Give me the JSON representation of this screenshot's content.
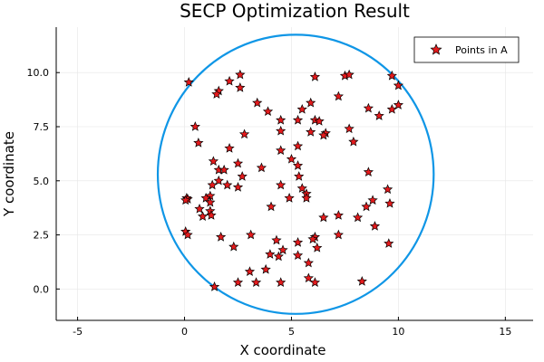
{
  "chart_data": {
    "type": "scatter",
    "title": "SECP Optimization Result",
    "xlabel": "X coordinate",
    "ylabel": "Y coordinate",
    "xlim": [
      -6,
      16.3
    ],
    "ylim": [
      -1.45,
      12.1
    ],
    "xticks": [
      -5,
      0,
      5,
      10,
      15
    ],
    "yticks": [
      0.0,
      2.5,
      5.0,
      7.5,
      10.0
    ],
    "ytick_labels": [
      "0.0",
      "2.5",
      "5.0",
      "7.5",
      "10.0"
    ],
    "grid": true,
    "legend": {
      "position": "top-right",
      "entries": [
        "Points in A"
      ]
    },
    "colors": {
      "points": "#e41a1c",
      "circle": "#0f96e6",
      "axis": "#000000",
      "grid": "#e6e6e6"
    },
    "circle": {
      "center": [
        5.2,
        5.3
      ],
      "radius": 6.45
    },
    "series": [
      {
        "name": "Points in A",
        "marker": "star",
        "points": [
          [
            0.2,
            9.55
          ],
          [
            1.6,
            9.15
          ],
          [
            1.5,
            9.0
          ],
          [
            2.6,
            9.9
          ],
          [
            2.6,
            9.3
          ],
          [
            2.1,
            9.6
          ],
          [
            3.4,
            8.6
          ],
          [
            3.9,
            8.2
          ],
          [
            4.5,
            7.8
          ],
          [
            6.1,
            9.8
          ],
          [
            7.5,
            9.85
          ],
          [
            7.7,
            9.9
          ],
          [
            7.2,
            8.9
          ],
          [
            9.7,
            9.85
          ],
          [
            10.0,
            9.4
          ],
          [
            5.9,
            8.6
          ],
          [
            5.5,
            8.3
          ],
          [
            5.3,
            7.8
          ],
          [
            6.1,
            7.8
          ],
          [
            6.3,
            7.75
          ],
          [
            5.9,
            7.25
          ],
          [
            6.6,
            7.2
          ],
          [
            6.5,
            7.1
          ],
          [
            7.7,
            7.4
          ],
          [
            7.9,
            6.8
          ],
          [
            8.6,
            8.35
          ],
          [
            9.1,
            8.0
          ],
          [
            10.0,
            8.5
          ],
          [
            9.7,
            8.3
          ],
          [
            0.5,
            7.5
          ],
          [
            0.65,
            6.75
          ],
          [
            2.1,
            6.5
          ],
          [
            2.8,
            7.15
          ],
          [
            4.5,
            7.3
          ],
          [
            4.5,
            6.4
          ],
          [
            5.3,
            6.6
          ],
          [
            1.35,
            5.9
          ],
          [
            1.6,
            5.5
          ],
          [
            1.85,
            5.5
          ],
          [
            2.5,
            5.8
          ],
          [
            3.6,
            5.6
          ],
          [
            5.0,
            6.0
          ],
          [
            5.3,
            5.7
          ],
          [
            1.3,
            4.8
          ],
          [
            1.6,
            5.0
          ],
          [
            2.0,
            4.8
          ],
          [
            2.5,
            4.7
          ],
          [
            2.7,
            5.2
          ],
          [
            5.35,
            5.2
          ],
          [
            4.5,
            4.8
          ],
          [
            5.5,
            4.65
          ],
          [
            5.7,
            4.4
          ],
          [
            4.9,
            4.2
          ],
          [
            5.7,
            4.2
          ],
          [
            0.1,
            4.2
          ],
          [
            0.15,
            4.15
          ],
          [
            0.05,
            4.1
          ],
          [
            1.2,
            4.3
          ],
          [
            1.0,
            4.2
          ],
          [
            1.2,
            4.0
          ],
          [
            0.7,
            3.7
          ],
          [
            0.85,
            3.35
          ],
          [
            1.2,
            3.6
          ],
          [
            1.25,
            3.4
          ],
          [
            4.05,
            3.8
          ],
          [
            9.5,
            4.6
          ],
          [
            9.6,
            3.95
          ],
          [
            8.8,
            4.1
          ],
          [
            8.5,
            3.8
          ],
          [
            8.6,
            5.4
          ],
          [
            6.5,
            3.3
          ],
          [
            7.2,
            3.4
          ],
          [
            8.1,
            3.3
          ],
          [
            0.05,
            2.65
          ],
          [
            0.15,
            2.5
          ],
          [
            1.7,
            2.4
          ],
          [
            3.1,
            2.5
          ],
          [
            2.3,
            1.95
          ],
          [
            4.3,
            2.25
          ],
          [
            5.3,
            2.15
          ],
          [
            6.1,
            2.4
          ],
          [
            6.0,
            2.3
          ],
          [
            7.2,
            2.5
          ],
          [
            8.9,
            2.9
          ],
          [
            9.55,
            2.1
          ],
          [
            6.2,
            1.9
          ],
          [
            4.0,
            1.6
          ],
          [
            4.6,
            1.8
          ],
          [
            4.4,
            1.5
          ],
          [
            5.3,
            1.55
          ],
          [
            5.8,
            1.2
          ],
          [
            3.8,
            0.9
          ],
          [
            3.05,
            0.8
          ],
          [
            2.5,
            0.3
          ],
          [
            3.35,
            0.3
          ],
          [
            4.5,
            0.3
          ],
          [
            5.8,
            0.5
          ],
          [
            6.1,
            0.3
          ],
          [
            8.3,
            0.35
          ],
          [
            1.4,
            0.1
          ]
        ]
      }
    ]
  }
}
